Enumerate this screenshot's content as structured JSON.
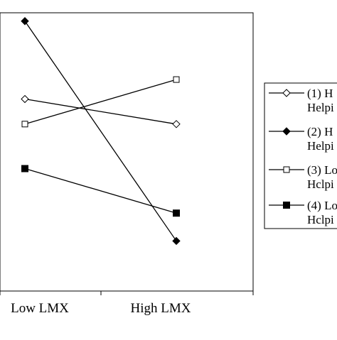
{
  "chart_data": {
    "type": "line",
    "x": [
      "Low LMX",
      "High LMX"
    ],
    "ylim": [
      0,
      100
    ],
    "grid": false,
    "legend_position": "right",
    "series": [
      {
        "name": "(1) H",
        "name_line2": "Helpi",
        "marker": "diamond-open",
        "values": [
          69,
          60
        ]
      },
      {
        "name": "(2) H",
        "name_line2": "Helpi",
        "marker": "diamond-filled",
        "values": [
          97,
          18
        ]
      },
      {
        "name": "(3) Lo",
        "name_line2": "Hclpi",
        "marker": "square-open",
        "values": [
          60,
          76
        ]
      },
      {
        "name": "(4) Lo",
        "name_line2": "Hclpi",
        "marker": "square-filled",
        "values": [
          44,
          28
        ]
      }
    ]
  }
}
